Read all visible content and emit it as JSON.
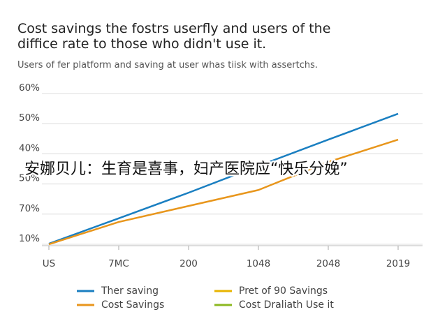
{
  "chart_data": {
    "type": "line",
    "title": "Cost savings the fostrs userfly and users of the",
    "title_line2": "diffice rate to those who didn't use it.",
    "subtitle": "Users of fer platform and saving at user whas tiisk with assertchs.",
    "categories": [
      "US",
      "7MC",
      "200",
      "1048",
      "2048",
      "2019"
    ],
    "y_categories": [
      "10%",
      "70%",
      "50%",
      "40%",
      "50%",
      "60%"
    ],
    "series": [
      {
        "name": "Ther saving",
        "color": "#1a7fc1",
        "values": [
          0.02,
          0.86,
          1.71,
          2.6,
          3.47,
          4.33
        ]
      },
      {
        "name": "Pret of 90 Savings",
        "color": "#e8b400",
        "values": [
          null,
          null,
          null,
          null,
          null,
          null
        ]
      },
      {
        "name": "Cost Savings",
        "color": "#e8961c",
        "values": [
          0,
          0.74,
          1.27,
          1.8,
          2.73,
          3.47
        ]
      },
      {
        "name": "Cost Draliath Use it",
        "color": "#8cb820",
        "values": [
          null,
          null,
          null,
          null,
          null,
          null
        ]
      }
    ],
    "grid": true,
    "overlay_text": "安娜贝儿：生育是喜事，妇产医院应“快乐分娩”"
  }
}
